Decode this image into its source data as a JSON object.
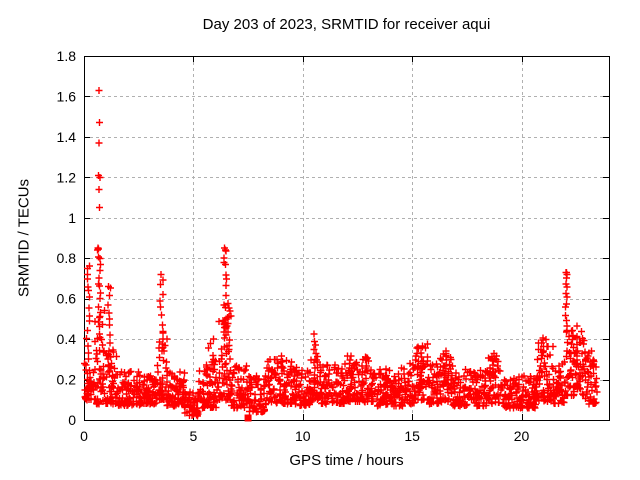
{
  "chart_data": {
    "type": "scatter",
    "title": "Day 203 of 2023, SRMTID for receiver aqui",
    "xlabel": "GPS time / hours",
    "ylabel": "SRMTID / TECUs",
    "xlim": [
      0,
      24
    ],
    "ylim": [
      0,
      1.8
    ],
    "xticks": [
      {
        "v": 0,
        "label": "0"
      },
      {
        "v": 5,
        "label": "5"
      },
      {
        "v": 10,
        "label": "10"
      },
      {
        "v": 15,
        "label": "15"
      },
      {
        "v": 20,
        "label": "20"
      }
    ],
    "yticks": [
      {
        "v": 0,
        "label": "0"
      },
      {
        "v": 0.2,
        "label": "0.2"
      },
      {
        "v": 0.4,
        "label": "0.4"
      },
      {
        "v": 0.6,
        "label": "0.6"
      },
      {
        "v": 0.8,
        "label": "0.8"
      },
      {
        "v": 1,
        "label": "1"
      },
      {
        "v": 1.2,
        "label": "1.2"
      },
      {
        "v": 1.4,
        "label": "1.4"
      },
      {
        "v": 1.6,
        "label": "1.6"
      },
      {
        "v": 1.8,
        "label": "1.8"
      }
    ],
    "grid": true,
    "legend": "none",
    "marker": "plus",
    "marker_color": "#ff0000",
    "grid_color": "#b0b0b0",
    "axis_color": "#000000",
    "seed": 77,
    "square_marker": {
      "x": 7.5,
      "y": 0.01,
      "shape": "filled-square"
    },
    "outliers": [
      [
        0.68,
        1.63
      ],
      [
        0.7,
        1.47
      ],
      [
        0.69,
        1.37
      ],
      [
        0.67,
        1.21
      ],
      [
        0.72,
        1.2
      ],
      [
        0.69,
        1.14
      ],
      [
        0.7,
        1.05
      ],
      [
        0.63,
        0.85
      ],
      [
        0.61,
        0.84
      ],
      [
        0.15,
        0.75
      ],
      [
        0.17,
        0.72
      ],
      [
        6.42,
        0.85
      ],
      [
        6.46,
        0.84
      ],
      [
        6.4,
        0.78
      ],
      [
        3.52,
        0.72
      ],
      [
        22.03,
        0.73
      ],
      [
        22.07,
        0.72
      ],
      [
        1.12,
        0.66
      ]
    ],
    "baseline_segments": [
      [
        0.03,
        0.5,
        45,
        0.1,
        0.3,
        1.6
      ],
      [
        0.5,
        0.95,
        45,
        0.08,
        0.55,
        1.8
      ],
      [
        0.95,
        1.5,
        50,
        0.08,
        0.35,
        1.8
      ],
      [
        1.5,
        2.6,
        90,
        0.07,
        0.24,
        1.6
      ],
      [
        2.6,
        3.3,
        60,
        0.08,
        0.22,
        1.5
      ],
      [
        3.3,
        3.8,
        45,
        0.1,
        0.45,
        1.8
      ],
      [
        3.8,
        4.6,
        65,
        0.07,
        0.24,
        1.6
      ],
      [
        4.6,
        5.25,
        50,
        0.02,
        0.14,
        1.3
      ],
      [
        5.25,
        6.1,
        70,
        0.06,
        0.3,
        1.7
      ],
      [
        6.1,
        6.75,
        55,
        0.1,
        0.55,
        1.8
      ],
      [
        6.75,
        7.5,
        60,
        0.06,
        0.27,
        1.6
      ],
      [
        7.5,
        8.35,
        65,
        0.04,
        0.22,
        1.5
      ],
      [
        8.35,
        9.6,
        100,
        0.08,
        0.3,
        1.8
      ],
      [
        9.6,
        10.35,
        60,
        0.07,
        0.26,
        1.6
      ],
      [
        10.35,
        10.8,
        35,
        0.1,
        0.34,
        1.5
      ],
      [
        10.8,
        11.9,
        90,
        0.08,
        0.28,
        1.7
      ],
      [
        11.9,
        13.2,
        105,
        0.09,
        0.32,
        1.7
      ],
      [
        13.2,
        14.6,
        110,
        0.07,
        0.26,
        1.7
      ],
      [
        14.6,
        15.15,
        45,
        0.08,
        0.3,
        1.6
      ],
      [
        15.15,
        15.75,
        50,
        0.1,
        0.38,
        1.4
      ],
      [
        15.75,
        16.25,
        40,
        0.08,
        0.28,
        1.6
      ],
      [
        16.25,
        16.85,
        50,
        0.09,
        0.33,
        1.5
      ],
      [
        16.85,
        18.4,
        120,
        0.07,
        0.25,
        1.7
      ],
      [
        18.4,
        19.05,
        50,
        0.08,
        0.32,
        1.5
      ],
      [
        19.05,
        20.7,
        130,
        0.06,
        0.22,
        1.6
      ],
      [
        20.7,
        21.45,
        60,
        0.09,
        0.4,
        1.6
      ],
      [
        21.45,
        21.95,
        40,
        0.08,
        0.28,
        1.5
      ],
      [
        21.95,
        22.9,
        80,
        0.12,
        0.48,
        1.5
      ],
      [
        22.9,
        23.45,
        40,
        0.08,
        0.35,
        1.6
      ]
    ],
    "columns": [
      [
        0.18,
        13,
        0.28,
        0.77,
        0.15
      ],
      [
        0.7,
        16,
        0.42,
        0.86,
        0.12
      ],
      [
        1.15,
        10,
        0.3,
        0.66,
        0.15
      ],
      [
        3.55,
        10,
        0.35,
        0.72,
        0.15
      ],
      [
        5.8,
        8,
        0.2,
        0.42,
        0.25
      ],
      [
        6.45,
        14,
        0.35,
        0.86,
        0.12
      ],
      [
        6.58,
        8,
        0.3,
        0.6,
        0.18
      ],
      [
        9.05,
        5,
        0.22,
        0.33,
        0.1
      ],
      [
        10.55,
        8,
        0.25,
        0.43,
        0.12
      ],
      [
        12.15,
        5,
        0.22,
        0.34,
        0.1
      ],
      [
        12.9,
        5,
        0.22,
        0.33,
        0.1
      ],
      [
        15.35,
        8,
        0.22,
        0.38,
        0.22
      ],
      [
        16.5,
        6,
        0.22,
        0.35,
        0.15
      ],
      [
        18.7,
        6,
        0.22,
        0.34,
        0.15
      ],
      [
        21.0,
        7,
        0.25,
        0.42,
        0.18
      ],
      [
        22.05,
        12,
        0.44,
        0.74,
        0.08
      ],
      [
        22.45,
        10,
        0.25,
        0.48,
        0.25
      ],
      [
        23.1,
        5,
        0.2,
        0.36,
        0.15
      ]
    ]
  }
}
